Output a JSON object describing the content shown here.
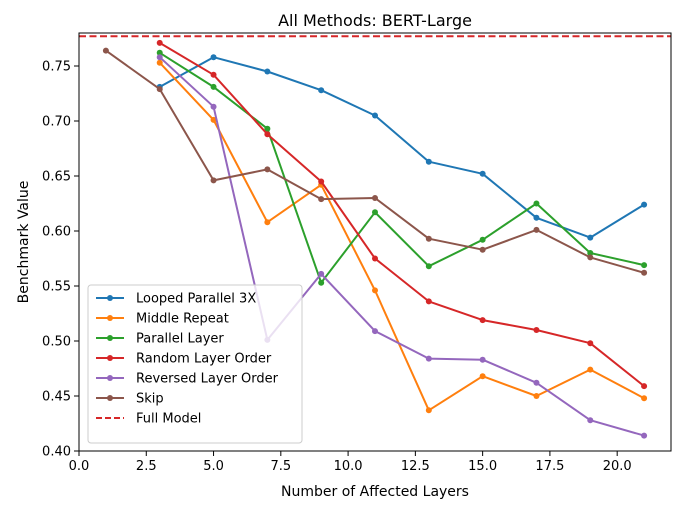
{
  "chart_data": {
    "type": "line",
    "title": "All Methods: BERT-Large",
    "xlabel": "Number of Affected Layers",
    "ylabel": "Benchmark Value",
    "xlim": [
      0.0,
      22.0
    ],
    "ylim": [
      0.4,
      0.78
    ],
    "xticks": [
      0.0,
      2.5,
      5.0,
      7.5,
      10.0,
      12.5,
      15.0,
      17.5,
      20.0
    ],
    "xtick_labels": [
      "0.0",
      "2.5",
      "5.0",
      "7.5",
      "10.0",
      "12.5",
      "15.0",
      "17.5",
      "20.0"
    ],
    "yticks": [
      0.4,
      0.45,
      0.5,
      0.55,
      0.6,
      0.65,
      0.7,
      0.75
    ],
    "ytick_labels": [
      "0.40",
      "0.45",
      "0.50",
      "0.55",
      "0.60",
      "0.65",
      "0.70",
      "0.75"
    ],
    "grid": false,
    "legend_position": "lower-left",
    "series": [
      {
        "name": "Looped Parallel 3X",
        "color": "#1f77b4",
        "x": [
          3,
          5,
          7,
          9,
          11,
          13,
          15,
          17,
          19,
          21
        ],
        "y": [
          0.731,
          0.758,
          0.745,
          0.728,
          0.705,
          0.663,
          0.652,
          0.612,
          0.594,
          0.624
        ]
      },
      {
        "name": "Middle Repeat",
        "color": "#ff7f0e",
        "x": [
          3,
          5,
          7,
          9,
          11,
          13,
          15,
          17,
          19,
          21
        ],
        "y": [
          0.753,
          0.701,
          0.608,
          0.642,
          0.546,
          0.437,
          0.468,
          0.45,
          0.474,
          0.448
        ]
      },
      {
        "name": "Parallel Layer",
        "color": "#2ca02c",
        "x": [
          3,
          5,
          7,
          9,
          11,
          13,
          15,
          17,
          19,
          21
        ],
        "y": [
          0.762,
          0.731,
          0.693,
          0.553,
          0.617,
          0.568,
          0.592,
          0.625,
          0.58,
          0.569
        ]
      },
      {
        "name": "Random Layer Order",
        "color": "#d62728",
        "x": [
          3,
          5,
          7,
          9,
          11,
          13,
          15,
          17,
          19,
          21
        ],
        "y": [
          0.771,
          0.742,
          0.688,
          0.645,
          0.575,
          0.536,
          0.519,
          0.51,
          0.498,
          0.459
        ]
      },
      {
        "name": "Reversed Layer Order",
        "color": "#9467bd",
        "x": [
          3,
          5,
          7,
          9,
          11,
          13,
          15,
          17,
          19,
          21
        ],
        "y": [
          0.758,
          0.713,
          0.501,
          0.561,
          0.509,
          0.484,
          0.483,
          0.462,
          0.428,
          0.414
        ]
      },
      {
        "name": "Skip",
        "color": "#8c564b",
        "x": [
          1,
          3,
          5,
          7,
          9,
          11,
          13,
          15,
          17,
          19,
          21
        ],
        "y": [
          0.764,
          0.729,
          0.646,
          0.656,
          0.629,
          0.63,
          0.593,
          0.583,
          0.601,
          0.576,
          0.562
        ]
      }
    ],
    "reference_line": {
      "name": "Full Model",
      "color": "#d62728",
      "style": "dashed",
      "y": 0.777
    }
  }
}
